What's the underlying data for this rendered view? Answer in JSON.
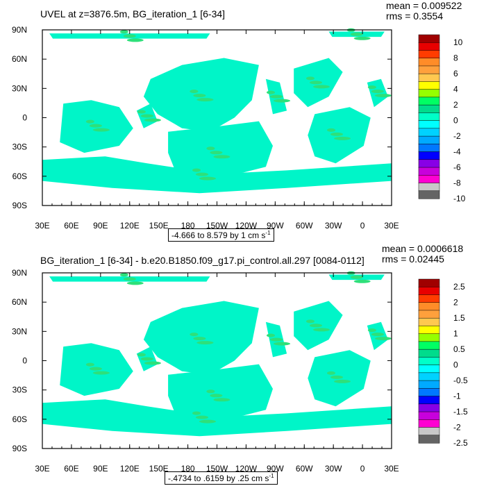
{
  "chart_data": [
    {
      "type": "heatmap",
      "title": "UVEL at z=3876.5m, BG_iteration_1 [6-34]",
      "mean_label": "mean = 0.009522",
      "rms_label": "rms = 0.3554",
      "range_label": "-4.666 to 8.579 by 1 cm s",
      "range_unit_exp": "-1",
      "xticks": [
        "30E",
        "60E",
        "90E",
        "120E",
        "150E",
        "180",
        "150W",
        "120W",
        "90W",
        "60W",
        "30W",
        "0",
        "30E"
      ],
      "yticks": [
        "90N",
        "60N",
        "30N",
        "0",
        "30S",
        "60S",
        "90S"
      ],
      "colorbar_labels": [
        "10",
        "8",
        "6",
        "4",
        "2",
        "0",
        "-2",
        "-4",
        "-6",
        "-8",
        "-10"
      ],
      "colorbar_colors": [
        "#a00000",
        "#e80000",
        "#ff3c00",
        "#ff8c28",
        "#ffa03c",
        "#ffc850",
        "#ffff00",
        "#96ff00",
        "#00ff64",
        "#00dc8c",
        "#00ffc8",
        "#00ffff",
        "#00d2ff",
        "#00aaff",
        "#0078ff",
        "#0000ff",
        "#8800e6",
        "#c800dc",
        "#ff00d2",
        "#c8c8c8",
        "#646464"
      ],
      "dominant_color": "#00f5c8",
      "secondary_color": "#2ee07a"
    },
    {
      "type": "heatmap",
      "title": "BG_iteration_1 [6-34] - b.e20.B1850.f09_g17.pi_control.all.297 [0084-0112]",
      "mean_label": "mean = 0.0006618",
      "rms_label": "rms = 0.02445",
      "range_label": "-.4734 to .6159 by .25 cm s",
      "range_unit_exp": "-1",
      "xticks": [
        "30E",
        "60E",
        "90E",
        "120E",
        "150E",
        "180",
        "150W",
        "120W",
        "90W",
        "60W",
        "30W",
        "0",
        "30E"
      ],
      "yticks": [
        "90N",
        "60N",
        "30N",
        "0",
        "30S",
        "60S",
        "90S"
      ],
      "colorbar_labels": [
        "2.5",
        "2",
        "1.5",
        "1",
        "0.5",
        "0",
        "-0.5",
        "-1",
        "-1.5",
        "-2",
        "-2.5"
      ],
      "colorbar_colors": [
        "#a00000",
        "#e80000",
        "#ff3c00",
        "#ff8c28",
        "#ffa03c",
        "#ffc850",
        "#ffff00",
        "#96ff00",
        "#00ff64",
        "#00dc8c",
        "#00ffc8",
        "#00ffff",
        "#00d2ff",
        "#00aaff",
        "#0078ff",
        "#0000ff",
        "#8800e6",
        "#c800dc",
        "#ff00d2",
        "#c8c8c8",
        "#646464"
      ],
      "dominant_color": "#00f5c8",
      "secondary_color": "#2ee07a"
    }
  ]
}
